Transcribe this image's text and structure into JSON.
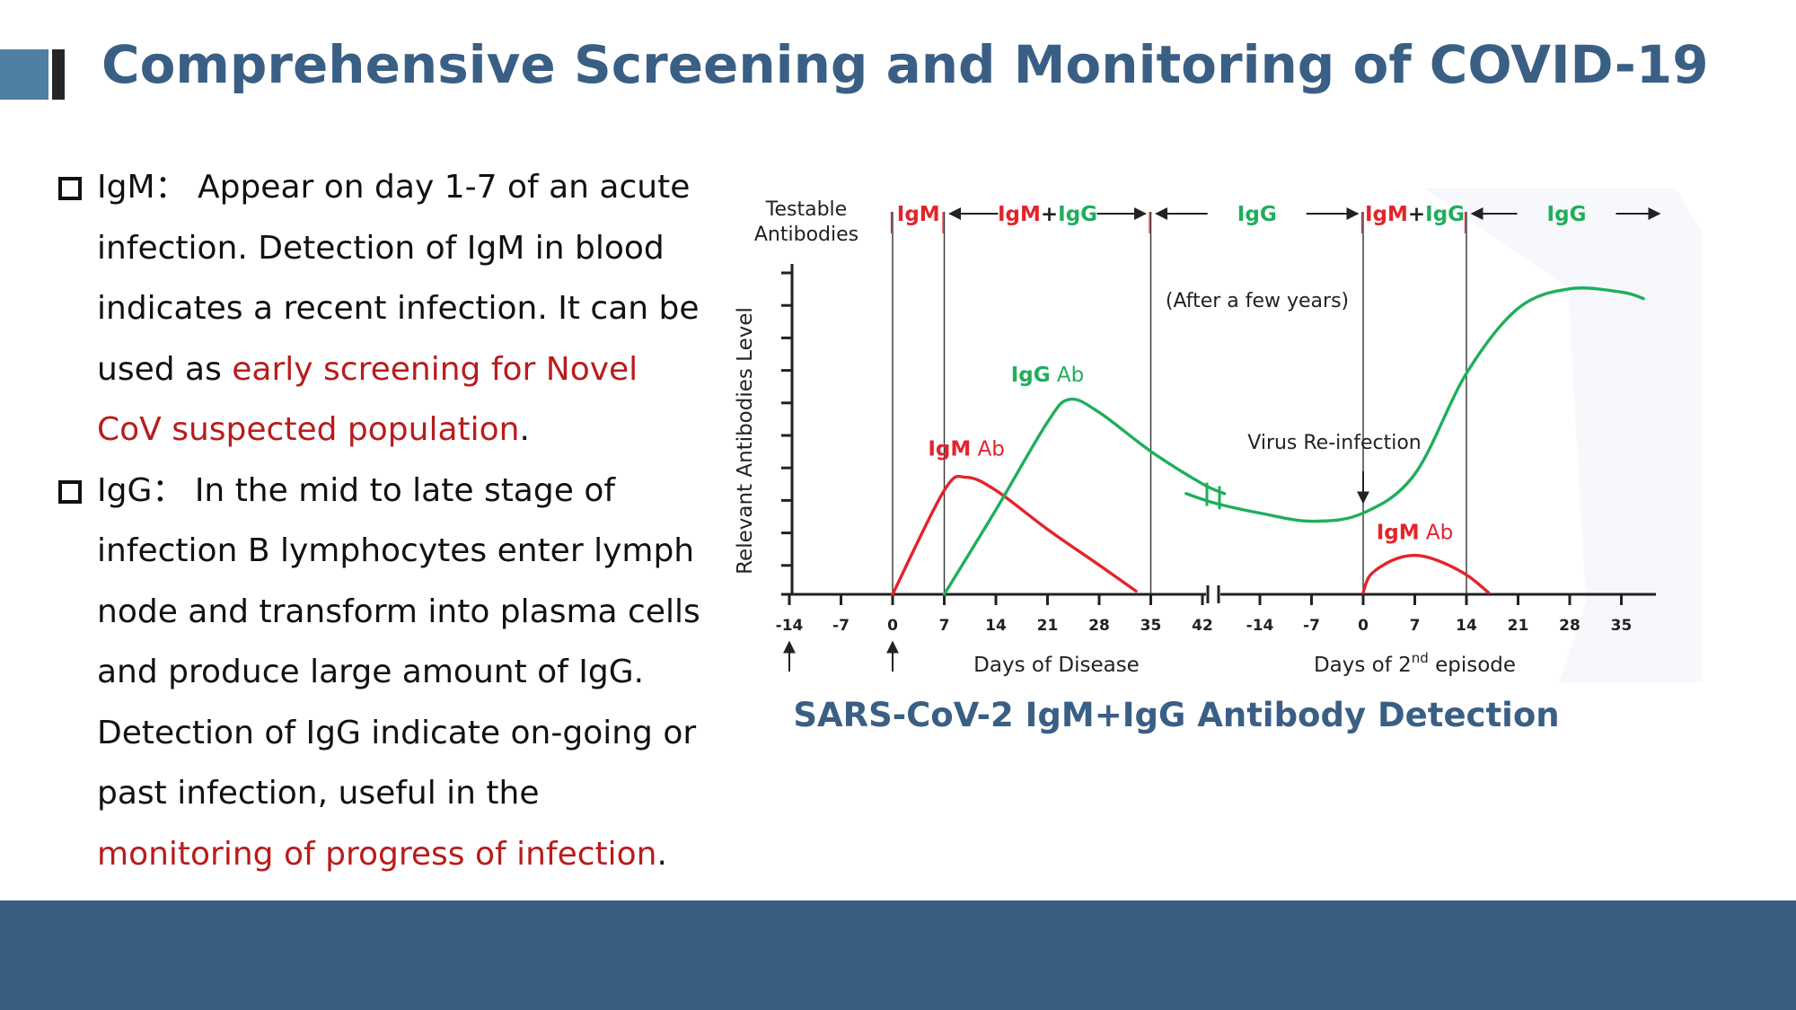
{
  "slide": {
    "title": "Comprehensive Screening and Monitoring of COVID-19",
    "colors": {
      "title": "#3a5f85",
      "accent": "#4f7fa3",
      "footer": "#385d80",
      "highlight": "#b81c1c",
      "igm": "#e3242b",
      "igg": "#1fae5b"
    }
  },
  "bullets": [
    {
      "lead": "IgM：",
      "text": " Appear on day 1-7 of an acute infection. Detection of IgM in blood indicates a recent infection. It can be used as ",
      "highlight": "early screening for Novel CoV suspected population",
      "tail": "."
    },
    {
      "lead": "IgG：",
      "text": " In the mid to late stage of infection B lymphocytes enter lymph node and transform into plasma cells and produce large amount of IgG. Detection of IgG indicate on-going or past infection, useful in the ",
      "highlight": "monitoring of progress of infection",
      "tail": "."
    }
  ],
  "caption": "SARS-CoV-2 IgM+IgG Antibody Detection",
  "chart_data": {
    "type": "line",
    "title": "",
    "ylabel": "Relevant Antibodies Level",
    "corner_label": [
      "Testable",
      "Antibodies"
    ],
    "episodes": [
      {
        "xlabel": "Days of Disease",
        "ticks": [
          -14,
          -7,
          0,
          7,
          14,
          21,
          28,
          35,
          42
        ]
      },
      {
        "xlabel_main": "Days of 2",
        "xlabel_sup": "nd",
        "xlabel_end": " episode",
        "ticks": [
          -14,
          -7,
          0,
          7,
          14,
          21,
          28,
          35
        ]
      }
    ],
    "y_tick_count": 10,
    "y_range": [
      0,
      10
    ],
    "phases": [
      {
        "igm": "IgM",
        "igg": "",
        "arrows": ""
      },
      {
        "igm": "IgM",
        "plus": "+",
        "igg": "IgG",
        "arrows": "both"
      },
      {
        "igm": "",
        "igg": "IgG",
        "arrows": "both"
      },
      {
        "igm": "IgM",
        "plus": "+",
        "igg": "IgG",
        "arrows": ""
      },
      {
        "igm": "",
        "igg": "IgG",
        "arrows": "both"
      }
    ],
    "annotations": {
      "after_years": "(After a few years)",
      "reinfection": "Virus Re-infection"
    },
    "series": [
      {
        "name": "IgM Ab",
        "name_lead": "IgM",
        "name_rest": " Ab",
        "color": "#e3242b",
        "segments": [
          [
            [
              0,
              0
            ],
            [
              7,
              3.2
            ],
            [
              10,
              3.6
            ],
            [
              14,
              3.2
            ],
            [
              21,
              2.0
            ],
            [
              28,
              0.9
            ],
            [
              33,
              0.1
            ]
          ],
          [
            [
              0,
              0.05
            ],
            [
              1,
              0.6
            ],
            [
              4,
              1.05
            ],
            [
              7,
              1.2
            ],
            [
              10,
              1.05
            ],
            [
              14,
              0.6
            ],
            [
              17,
              0.05
            ]
          ]
        ]
      },
      {
        "name": "IgG Ab",
        "name_lead": "IgG",
        "name_rest": " Ab",
        "color": "#1fae5b",
        "segments": [
          [
            [
              7,
              0
            ],
            [
              14,
              2.6
            ],
            [
              21,
              5.3
            ],
            [
              24,
              6.0
            ],
            [
              28,
              5.6
            ],
            [
              35,
              4.4
            ],
            [
              42,
              3.4
            ],
            [
              45,
              3.1
            ]
          ],
          [
            [
              -24,
              3.1
            ],
            [
              -20,
              2.8
            ],
            [
              -14,
              2.5
            ],
            [
              -7,
              2.25
            ],
            [
              0,
              2.5
            ],
            [
              7,
              3.7
            ],
            [
              14,
              6.8
            ],
            [
              21,
              8.8
            ],
            [
              28,
              9.4
            ],
            [
              35,
              9.3
            ],
            [
              38,
              9.1
            ]
          ]
        ]
      }
    ]
  }
}
